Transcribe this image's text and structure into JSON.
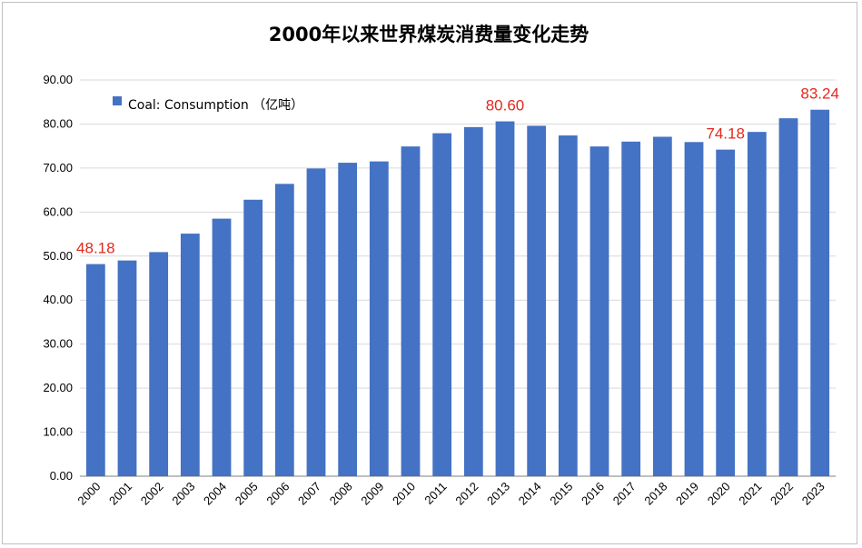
{
  "chart_data": {
    "type": "bar",
    "title": "2000年以来世界煤炭消费量变化走势",
    "categories": [
      "2000",
      "2001",
      "2002",
      "2003",
      "2004",
      "2005",
      "2006",
      "2007",
      "2008",
      "2009",
      "2010",
      "2011",
      "2012",
      "2013",
      "2014",
      "2015",
      "2016",
      "2017",
      "2018",
      "2019",
      "2020",
      "2021",
      "2022",
      "2023"
    ],
    "series": [
      {
        "name": "Coal: Consumption （亿吨）",
        "values": [
          48.18,
          49.0,
          50.9,
          55.1,
          58.5,
          62.8,
          66.4,
          69.9,
          71.2,
          71.5,
          74.9,
          77.9,
          79.3,
          80.6,
          79.6,
          77.4,
          74.9,
          76.0,
          77.1,
          75.9,
          74.18,
          78.2,
          81.3,
          83.24
        ]
      }
    ],
    "ylim": [
      0,
      90
    ],
    "y_ticks": [
      "0.00",
      "10.00",
      "20.00",
      "30.00",
      "40.00",
      "50.00",
      "60.00",
      "70.00",
      "80.00",
      "90.00"
    ],
    "grid": true,
    "legend_position": "top-left",
    "bar_color": "#4472c4",
    "annotations": [
      {
        "category": "2000",
        "text": "48.18"
      },
      {
        "category": "2013",
        "text": "80.60"
      },
      {
        "category": "2020",
        "text": "74.18"
      },
      {
        "category": "2023",
        "text": "83.24"
      }
    ],
    "annotation_color": "#e3281e"
  }
}
